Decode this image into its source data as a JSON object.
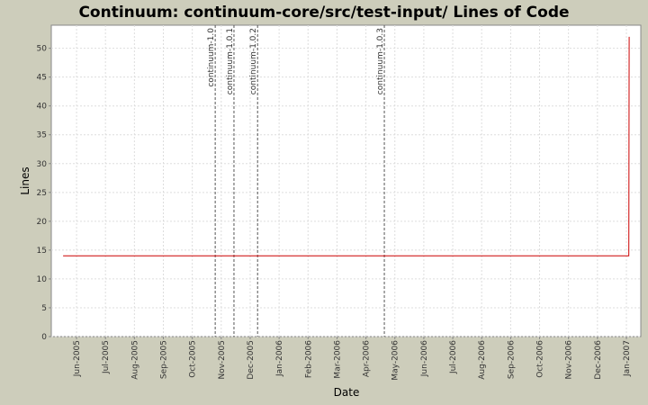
{
  "chart_data": {
    "type": "line",
    "title": "Continuum: continuum-core/src/test-input/ Lines of Code",
    "xlabel": "Date",
    "ylabel": "Lines",
    "x": [
      2005.378,
      2007.007,
      2007.008
    ],
    "series": [
      {
        "name": "Lines of Code",
        "color": "#cc0000",
        "values": [
          14,
          14,
          52
        ]
      }
    ],
    "markers": [
      {
        "label": "continuum-1.0",
        "x": 2005.816
      },
      {
        "label": "continuum-1.0.1",
        "x": 2005.87
      },
      {
        "label": "continuum-1.0.2",
        "x": 2005.938
      },
      {
        "label": "continuum-1.0.3",
        "x": 2006.303
      }
    ],
    "xlim": [
      2005.344,
      2007.0415
    ],
    "ylim": [
      0,
      54
    ],
    "yticks": [
      0,
      5,
      10,
      15,
      20,
      25,
      30,
      35,
      40,
      45,
      50
    ],
    "xticks": [
      {
        "value": 2005.4167,
        "label": "Jun-2005"
      },
      {
        "value": 2005.5,
        "label": "Jul-2005"
      },
      {
        "value": 2005.5833,
        "label": "Aug-2005"
      },
      {
        "value": 2005.6667,
        "label": "Sep-2005"
      },
      {
        "value": 2005.75,
        "label": "Oct-2005"
      },
      {
        "value": 2005.8333,
        "label": "Nov-2005"
      },
      {
        "value": 2005.9167,
        "label": "Dec-2005"
      },
      {
        "value": 2006.0,
        "label": "Jan-2006"
      },
      {
        "value": 2006.0833,
        "label": "Feb-2006"
      },
      {
        "value": 2006.1667,
        "label": "Mar-2006"
      },
      {
        "value": 2006.25,
        "label": "Apr-2006"
      },
      {
        "value": 2006.3333,
        "label": "May-2006"
      },
      {
        "value": 2006.4167,
        "label": "Jun-2006"
      },
      {
        "value": 2006.5,
        "label": "Jul-2006"
      },
      {
        "value": 2006.5833,
        "label": "Aug-2006"
      },
      {
        "value": 2006.6667,
        "label": "Sep-2006"
      },
      {
        "value": 2006.75,
        "label": "Oct-2006"
      },
      {
        "value": 2006.8333,
        "label": "Nov-2006"
      },
      {
        "value": 2006.9167,
        "label": "Dec-2006"
      },
      {
        "value": 2007.0,
        "label": "Jan-2007"
      }
    ],
    "grid": true
  }
}
